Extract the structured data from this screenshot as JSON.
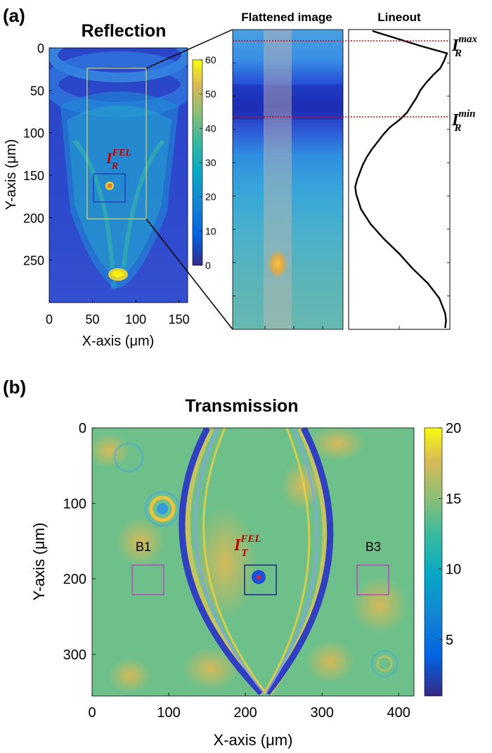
{
  "panel_a": {
    "label": "(a)",
    "title": "Reflection",
    "flattened_title": "Flattened image",
    "lineout_title": "Lineout",
    "ir_max": {
      "main": "I",
      "sub": "R",
      "sup": "max"
    },
    "ir_min": {
      "main": "I",
      "sub": "R",
      "sup": "min"
    },
    "ir_fel": {
      "main": "I",
      "sub": "R",
      "sup": "FEL"
    }
  },
  "panel_b": {
    "label": "(b)",
    "title": "Transmission",
    "it_fel": {
      "main": "I",
      "sub": "T",
      "sup": "FEL"
    },
    "box_b1": "B1",
    "box_b3": "B3"
  },
  "chart_data": [
    {
      "type": "heatmap",
      "title": "Reflection",
      "xlabel": "X-axis (μm)",
      "ylabel": "Y-axis (μm)",
      "xlim": [
        0,
        160
      ],
      "ylim": [
        300,
        0
      ],
      "x_ticks": [
        "0",
        "50",
        "100",
        "150"
      ],
      "y_ticks": [
        "0",
        "50",
        "100",
        "150",
        "200",
        "250"
      ],
      "colorbar": {
        "range": [
          0,
          60
        ],
        "ticks": [
          "0",
          "10",
          "20",
          "30",
          "40",
          "50",
          "60"
        ],
        "colormap": "parula"
      }
    },
    {
      "type": "line",
      "title": "Lineout",
      "x": [
        0.22,
        0.47,
        0.72,
        1.0,
        0.97,
        0.93,
        0.85,
        0.78,
        0.72,
        0.68,
        0.63,
        0.58,
        0.5,
        0.4,
        0.33,
        0.27,
        0.21,
        0.16,
        0.12,
        0.09,
        0.06,
        0.04,
        0.05,
        0.1,
        0.2,
        0.34,
        0.5,
        0.64,
        0.8,
        0.92,
        0.98,
        0.99,
        0.98
      ],
      "y": [
        0.0,
        0.025,
        0.05,
        0.075,
        0.1,
        0.125,
        0.15,
        0.175,
        0.2,
        0.225,
        0.25,
        0.275,
        0.3,
        0.325,
        0.35,
        0.375,
        0.4,
        0.425,
        0.45,
        0.475,
        0.5,
        0.525,
        0.55,
        0.6,
        0.65,
        0.7,
        0.75,
        0.8,
        0.85,
        0.9,
        0.95,
        0.975,
        1.0
      ]
    },
    {
      "type": "heatmap",
      "title": "Transmission",
      "xlabel": "X-axis (μm)",
      "ylabel": "Y-axis (μm)",
      "xlim": [
        0,
        420
      ],
      "ylim": [
        355,
        0
      ],
      "x_ticks": [
        "0",
        "100",
        "200",
        "300",
        "400"
      ],
      "y_ticks": [
        "0",
        "100",
        "200",
        "300"
      ],
      "colorbar": {
        "range": [
          1,
          20
        ],
        "ticks": [
          "5",
          "10",
          "15",
          "20"
        ],
        "colormap": "parula"
      }
    }
  ]
}
